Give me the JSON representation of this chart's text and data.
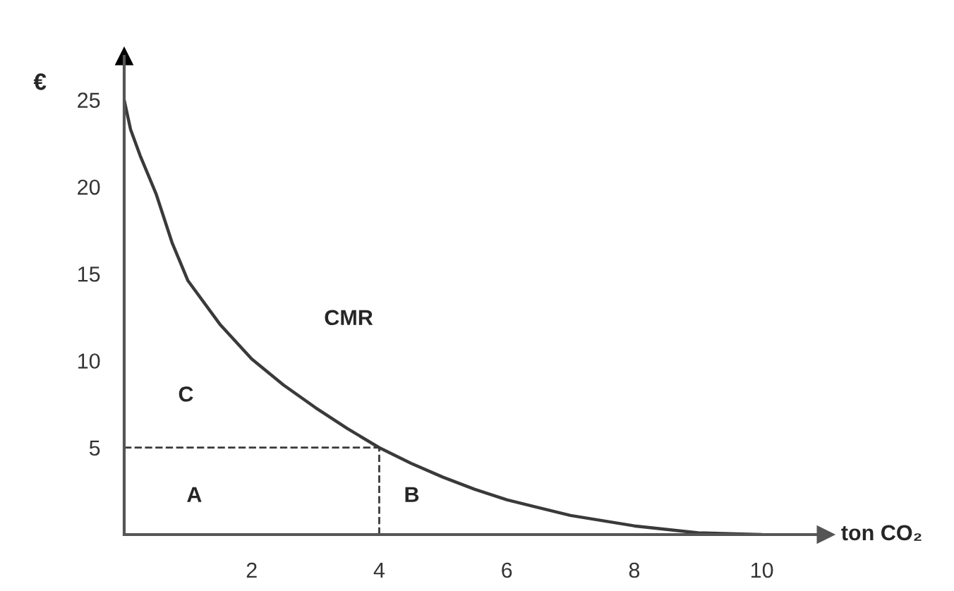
{
  "chart_data": {
    "type": "line",
    "xlabel": "ton CO₂",
    "ylabel": "€",
    "series": [
      {
        "color": "#3a3a3a",
        "x": [
          0,
          0.1,
          0.25,
          0.5,
          0.75,
          1,
          1.5,
          2,
          2.5,
          3,
          3.5,
          4,
          4.5,
          5,
          5.5,
          6,
          7,
          8,
          9,
          10
        ],
        "values": [
          25,
          23.3,
          21.8,
          19.6,
          16.8,
          14.6,
          12.1,
          10.1,
          8.6,
          7.3,
          6.1,
          5,
          4.1,
          3.3,
          2.6,
          2,
          1.1,
          0.5,
          0.1,
          0
        ]
      }
    ],
    "xlim": [
      0,
      11
    ],
    "ylim": [
      0,
      27.5
    ],
    "xticks": [
      2,
      4,
      6,
      8,
      10
    ],
    "yticks": [
      5,
      10,
      15,
      20,
      25
    ],
    "ref_lines": [
      {
        "axis": "y",
        "value": 5,
        "line_style": "dashed",
        "color": "#3a3a3a"
      },
      {
        "axis": "x",
        "value": 4,
        "line_style": "dashed",
        "color": "#3a3a3a"
      }
    ],
    "annotations": [
      "C",
      "A",
      "B",
      "CMR"
    ],
    "grid": false,
    "legend": false,
    "marker": "none",
    "line_style": "solid"
  }
}
